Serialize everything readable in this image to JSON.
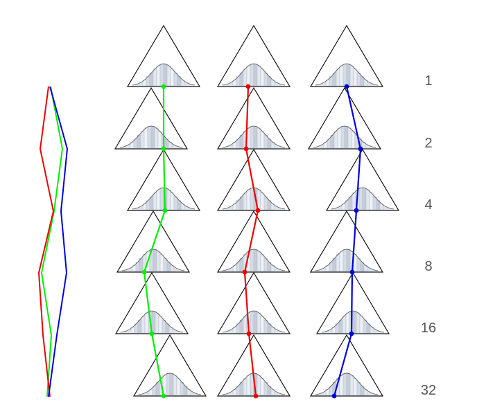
{
  "row_labels": [
    "1",
    "2",
    "4",
    "8",
    "16",
    "32"
  ],
  "columns": [
    {
      "id": "green",
      "color": "#00ee00",
      "offsets": [
        0,
        18,
        2,
        -13,
        0,
        -9
      ],
      "shifts": [
        0,
        -18,
        0,
        -15,
        -17,
        9
      ]
    },
    {
      "id": "red",
      "color": "#ee0000",
      "offsets": [
        -8,
        -11,
        6,
        -13,
        -7,
        3
      ],
      "shifts": [
        0,
        0,
        0,
        0,
        0,
        0
      ]
    },
    {
      "id": "blue",
      "color": "#0000dd",
      "offsets": [
        0,
        23,
        -9,
        8,
        -2,
        -18
      ],
      "shifts": [
        0,
        -3,
        23,
        0,
        9,
        0
      ]
    }
  ],
  "gaussian_fill": "#dde3ec",
  "stripe_colors": [
    "#eef1f6",
    "#d6dce6",
    "#c7cdd8",
    "#e3e7ee"
  ]
}
